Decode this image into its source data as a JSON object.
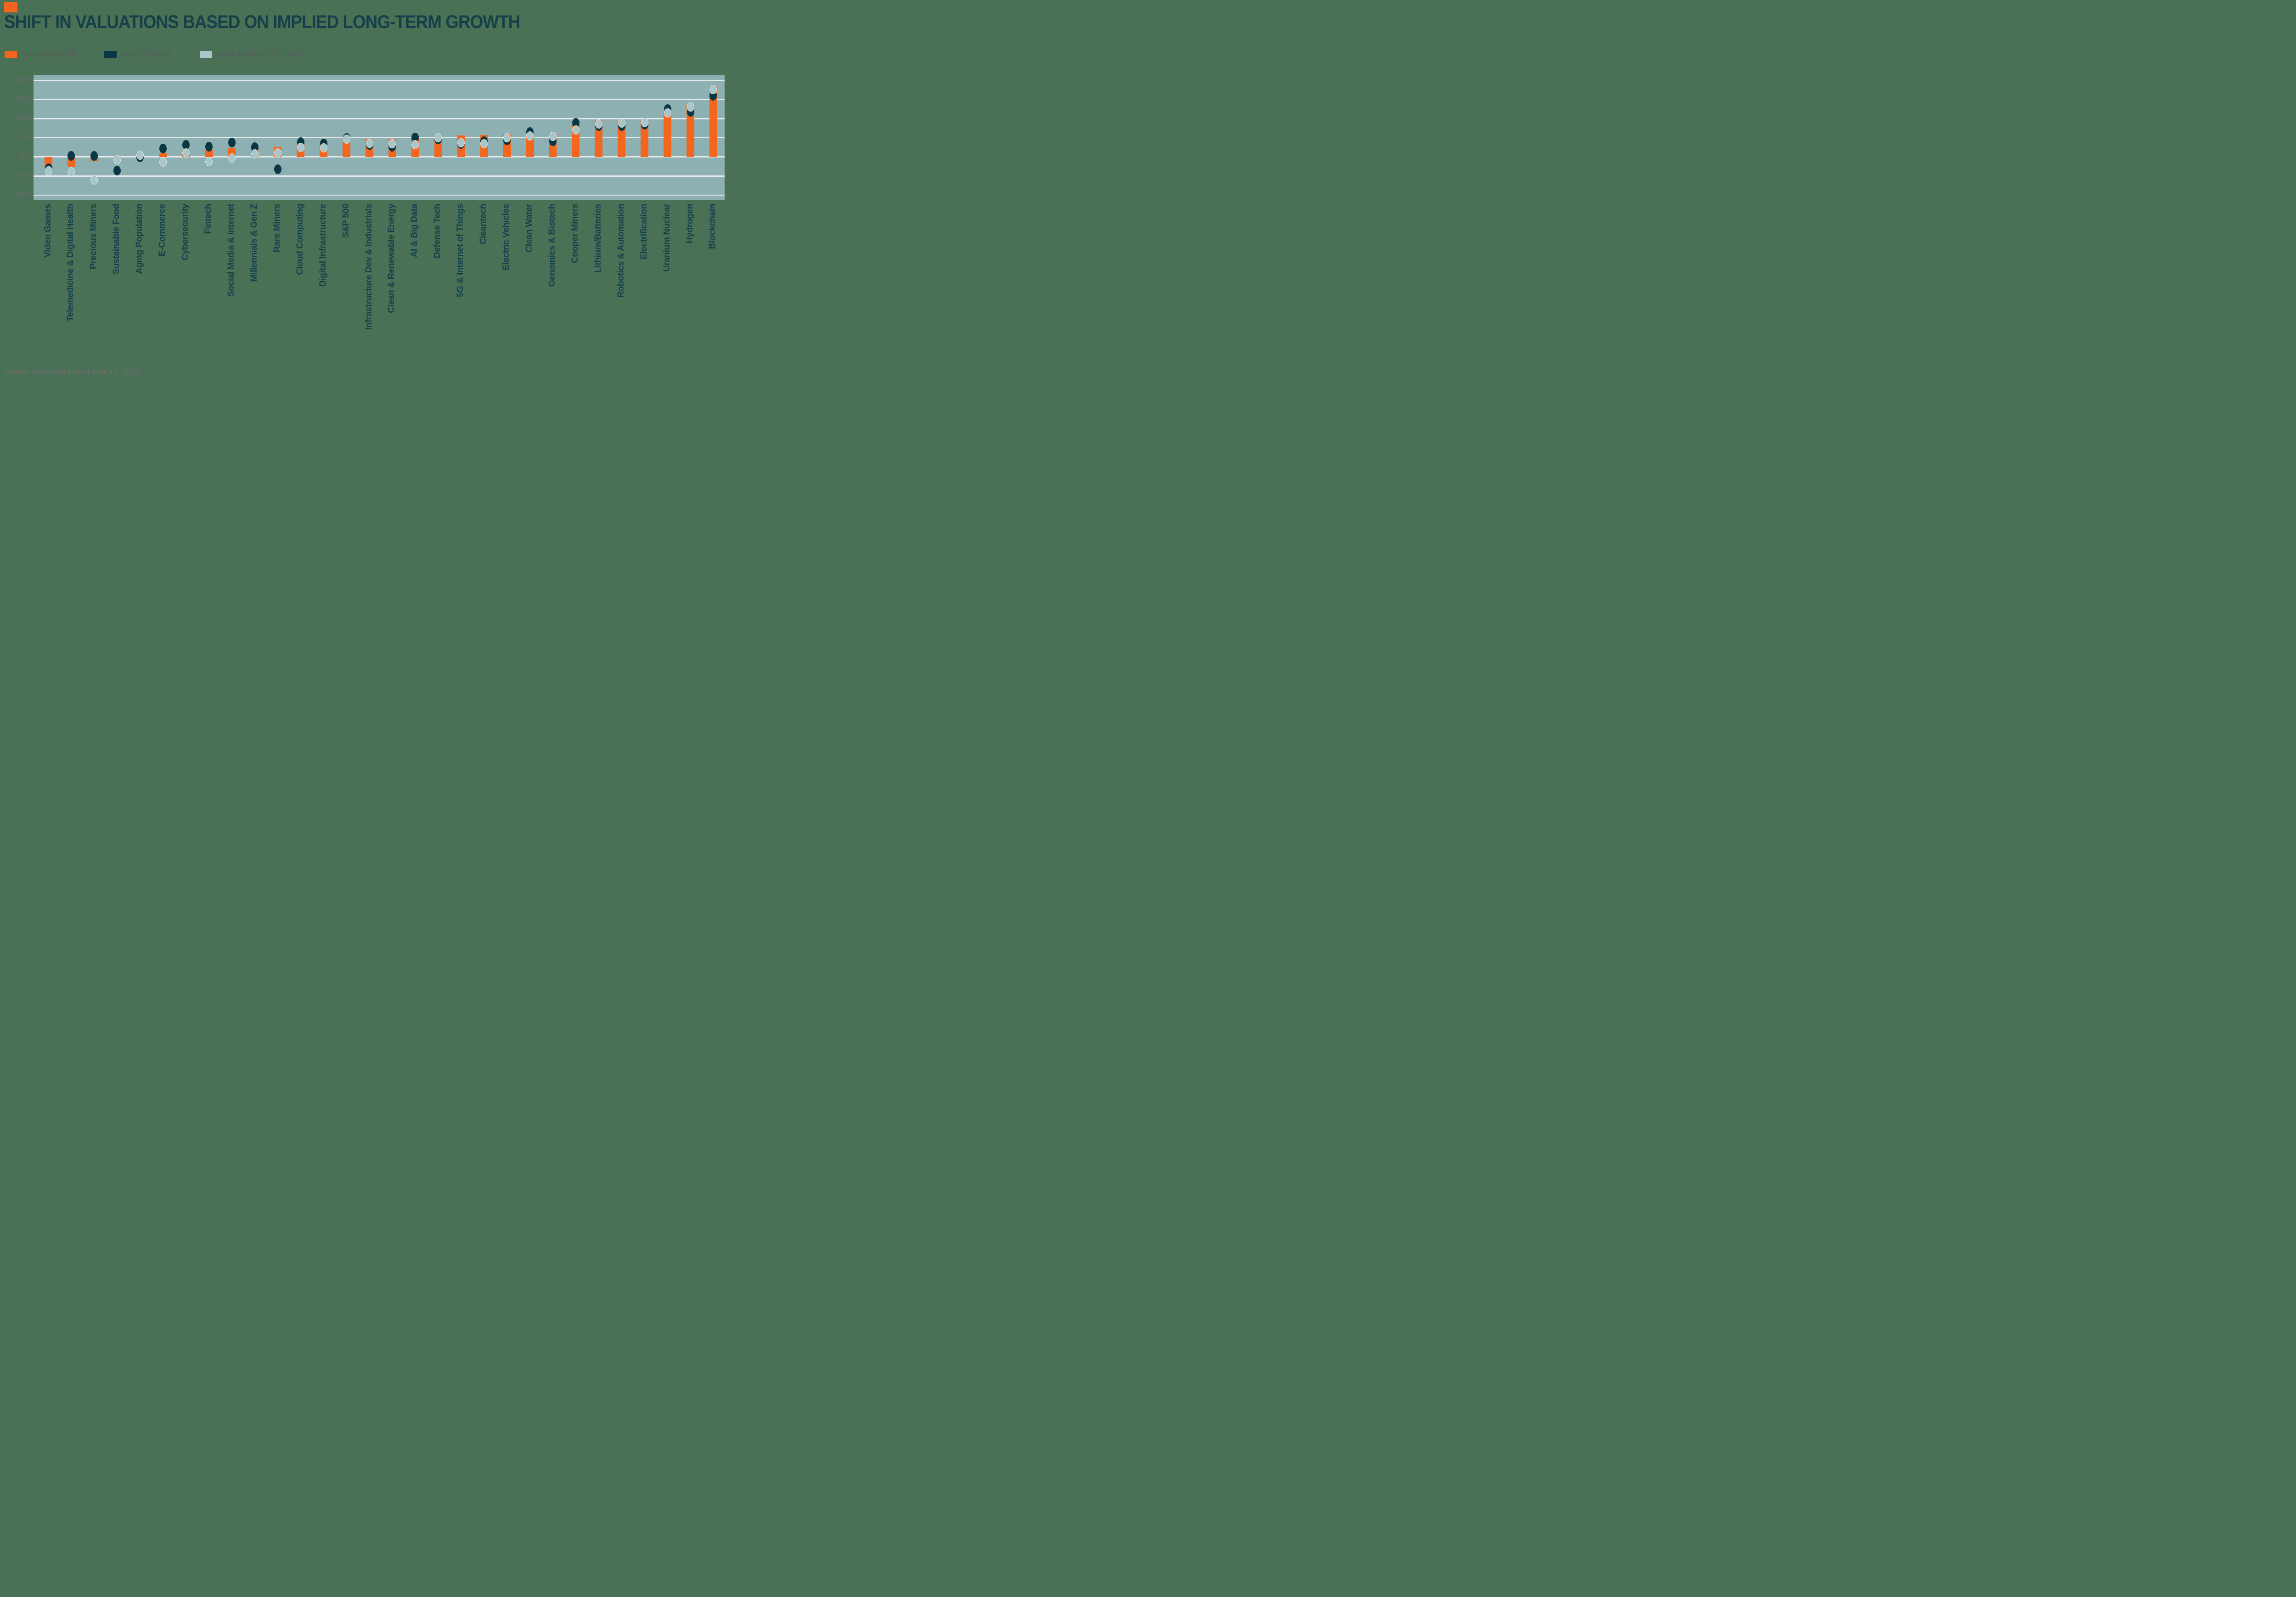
{
  "brand": {
    "accent_color": "#F4651D"
  },
  "header": {
    "title": "SHIFT IN VALUATIONS BASED ON IMPLIED LONG-TERM GROWTH"
  },
  "legend": {
    "items": [
      {
        "label": "As of 4/26/2026",
        "color": "#F4651D",
        "marker": "square"
      },
      {
        "label": "As of 1/2/2026",
        "color": "#0A3744",
        "marker": "square"
      },
      {
        "label": "As of 3/30/26 (YTD Low)",
        "color": "#A9C6C9",
        "marker": "square"
      }
    ]
  },
  "source_note": "Source: Bloomberg as of April 15, 2026.",
  "chart_data": {
    "type": "bar",
    "title": "SHIFT IN VALUATIONS BASED ON IMPLIED LONG-TERM GROWTH",
    "xlabel": "",
    "ylabel": "",
    "y_tick_suffix": "%",
    "y_ticks": [
      20,
      15,
      10,
      5,
      0,
      -5,
      -10
    ],
    "ylim": [
      -11.3,
      21.3
    ],
    "grid": true,
    "legend_position": "top-left",
    "plot_bg": "#8DB0B2",
    "gridline_color": "#E7E8E9",
    "categories": [
      "Video Games",
      "Telemedicine & Digital Health",
      "Precious Miners",
      "Sustainable Food",
      "Aging Population",
      "E-Commerce",
      "Cybersecurity",
      "Fintech",
      "Social Media & Internet",
      "Millennials & Gen Z",
      "Rare Miners",
      "Cloud Computing",
      "Digital Infrastructure",
      "S&P 500",
      "Infrastructure Dev & Industrials",
      "Clean & Renewable Energy",
      "AI & Big Data",
      "Defense Tech",
      "5G & Internet of Things",
      "Cleantech",
      "Electric Vehicles",
      "Clean Water",
      "Genomics & Biotech",
      "Cooper Miners",
      "Lithium/Batteries",
      "Robotics & Automation",
      "Electrification",
      "Uranium Nuclear",
      "Hydrogen",
      "Blockchain"
    ],
    "series": [
      {
        "name": "As of 4/26/2026",
        "style": "bar",
        "color": "#F4651D",
        "values": [
          -2.5,
          -2.5,
          -1.0,
          -0.2,
          0.9,
          0.9,
          1.6,
          1.9,
          2.2,
          2.2,
          2.6,
          3.8,
          4.1,
          4.1,
          4.7,
          4.7,
          5.2,
          5.4,
          5.6,
          5.7,
          6.0,
          5.8,
          6.0,
          8.3,
          9.5,
          9.6,
          9.6,
          12.1,
          13.6,
          18.3
        ]
      },
      {
        "name": "As of 1/2/2026",
        "style": "dot",
        "color": "#0A3744",
        "values": [
          -3.0,
          0.3,
          0.3,
          -3.6,
          -0.1,
          2.2,
          3.2,
          2.7,
          3.7,
          2.6,
          -3.2,
          3.9,
          3.5,
          5.0,
          3.1,
          2.7,
          5.1,
          4.6,
          3.4,
          4.1,
          4.4,
          6.5,
          4.1,
          8.9,
          8.0,
          8.1,
          8.4,
          12.5,
          11.8,
          16.0
        ]
      },
      {
        "name": "As of 3/30/26 (YTD Low)",
        "style": "dot-outline",
        "color": "#A9C6C9",
        "values": [
          -3.6,
          -3.9,
          -6.0,
          -0.8,
          0.4,
          -1.3,
          1.0,
          -1.2,
          -0.3,
          0.8,
          1.0,
          2.5,
          2.4,
          4.7,
          3.6,
          3.5,
          3.2,
          5.0,
          3.7,
          3.4,
          5.0,
          5.5,
          5.4,
          7.0,
          8.6,
          8.8,
          9.0,
          11.5,
          13.0,
          17.6
        ]
      }
    ]
  }
}
